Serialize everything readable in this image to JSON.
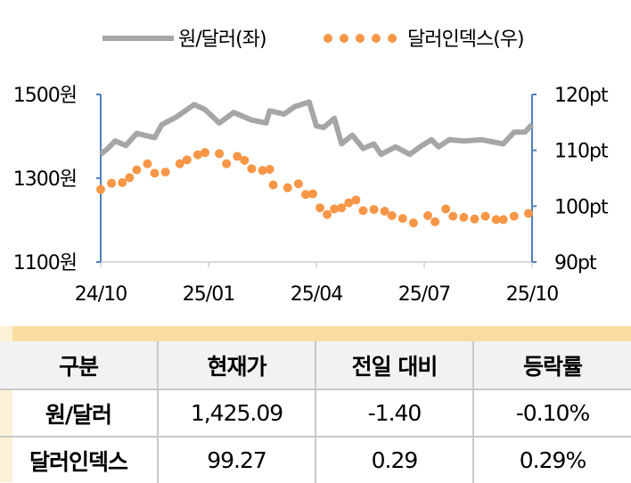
{
  "chart_data": {
    "type": "line",
    "legend": {
      "position": "top",
      "entries": [
        "원/달러(좌)",
        "달러인덱스(우)"
      ]
    },
    "x_ticks": [
      "24/10",
      "25/01",
      "25/04",
      "25/07",
      "25/10"
    ],
    "x_unit": "months since 24/10",
    "xlim": [
      0,
      12
    ],
    "left_axis": {
      "ylim": [
        1100,
        1500
      ],
      "ticks": [
        "1100원",
        "1300원",
        "1500원"
      ]
    },
    "right_axis": {
      "ylim": [
        90,
        120
      ],
      "ticks": [
        "90pt",
        "100pt",
        "110pt",
        "120pt"
      ]
    },
    "series": [
      {
        "name": "원/달러(좌)",
        "axis": "left",
        "style": "line",
        "color": "#a6a6a6",
        "x": [
          0,
          0.2,
          0.4,
          0.7,
          1.0,
          1.5,
          1.7,
          2.1,
          2.6,
          2.9,
          3.3,
          3.7,
          4.2,
          4.6,
          4.7,
          5.1,
          5.4,
          5.8,
          6.0,
          6.2,
          6.5,
          6.7,
          7.0,
          7.3,
          7.6,
          7.8,
          8.2,
          8.6,
          8.9,
          9.2,
          9.4,
          9.7,
          10.1,
          10.6,
          11.2,
          11.5,
          11.8,
          12.0
        ],
        "y": [
          1357,
          1371,
          1389,
          1378,
          1407,
          1397,
          1428,
          1446,
          1476,
          1464,
          1432,
          1457,
          1439,
          1432,
          1461,
          1453,
          1471,
          1482,
          1425,
          1421,
          1443,
          1382,
          1403,
          1371,
          1382,
          1357,
          1375,
          1357,
          1376,
          1392,
          1375,
          1392,
          1389,
          1392,
          1382,
          1410,
          1410,
          1428
        ]
      },
      {
        "name": "달러인덱스(우)",
        "axis": "right",
        "style": "dots",
        "color": "#f79646",
        "x": [
          0.0,
          0.3,
          0.6,
          0.8,
          1.0,
          1.3,
          1.5,
          1.8,
          2.2,
          2.4,
          2.7,
          2.9,
          3.3,
          3.5,
          3.8,
          4.0,
          4.2,
          4.5,
          4.7,
          4.8,
          5.2,
          5.5,
          5.7,
          5.9,
          6.1,
          6.3,
          6.5,
          6.7,
          6.9,
          7.1,
          7.3,
          7.6,
          7.9,
          8.1,
          8.4,
          8.7,
          9.1,
          9.3,
          9.6,
          9.8,
          10.1,
          10.4,
          10.7,
          11.0,
          11.2,
          11.5,
          11.9
        ],
        "y": [
          103.0,
          104.1,
          104.2,
          105.1,
          106.5,
          107.6,
          105.9,
          106.1,
          107.6,
          108.3,
          109.2,
          109.6,
          109.4,
          107.6,
          108.9,
          108.2,
          106.7,
          106.4,
          106.6,
          103.8,
          103.3,
          104.0,
          102.1,
          102.2,
          99.7,
          98.5,
          99.5,
          99.7,
          100.6,
          101.1,
          99.2,
          99.4,
          99.1,
          98.3,
          97.8,
          97.0,
          98.3,
          97.2,
          99.5,
          98.2,
          98.0,
          97.7,
          98.2,
          97.6,
          97.6,
          98.2,
          98.7
        ]
      }
    ]
  },
  "table": {
    "headers": [
      "구분",
      "현재가",
      "전일 대비",
      "등락률"
    ],
    "rows": [
      [
        "원/달러",
        "1,425.09",
        "-1.40",
        "-0.10%"
      ],
      [
        "달러인덱스",
        "99.27",
        "0.29",
        "0.29%"
      ]
    ]
  },
  "colors": {
    "axis": "#4f81bd",
    "band": "#f9dc9e"
  }
}
